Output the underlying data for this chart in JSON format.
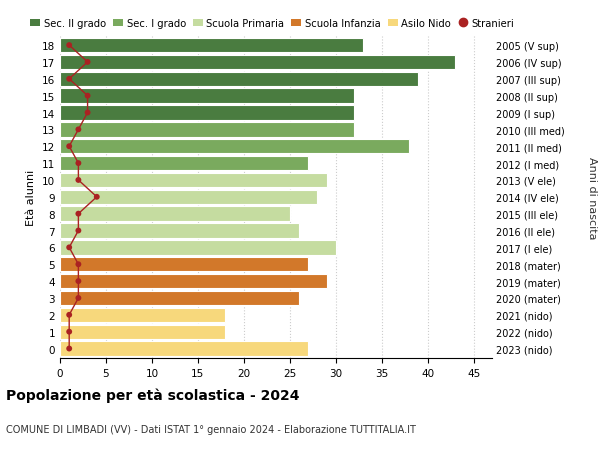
{
  "ages": [
    18,
    17,
    16,
    15,
    14,
    13,
    12,
    11,
    10,
    9,
    8,
    7,
    6,
    5,
    4,
    3,
    2,
    1,
    0
  ],
  "bar_values": [
    33,
    43,
    39,
    32,
    32,
    32,
    38,
    27,
    29,
    28,
    25,
    26,
    30,
    27,
    29,
    26,
    18,
    18,
    27
  ],
  "stranieri_values": [
    1,
    3,
    1,
    3,
    3,
    2,
    1,
    2,
    2,
    4,
    2,
    2,
    1,
    2,
    2,
    2,
    1,
    1,
    1
  ],
  "right_labels": [
    "2005 (V sup)",
    "2006 (IV sup)",
    "2007 (III sup)",
    "2008 (II sup)",
    "2009 (I sup)",
    "2010 (III med)",
    "2011 (II med)",
    "2012 (I med)",
    "2013 (V ele)",
    "2014 (IV ele)",
    "2015 (III ele)",
    "2016 (II ele)",
    "2017 (I ele)",
    "2018 (mater)",
    "2019 (mater)",
    "2020 (mater)",
    "2021 (nido)",
    "2022 (nido)",
    "2023 (nido)"
  ],
  "bar_colors_by_age": {
    "18": "#4a7c40",
    "17": "#4a7c40",
    "16": "#4a7c40",
    "15": "#4a7c40",
    "14": "#4a7c40",
    "13": "#7aaa5e",
    "12": "#7aaa5e",
    "11": "#7aaa5e",
    "10": "#c5dca0",
    "9": "#c5dca0",
    "8": "#c5dca0",
    "7": "#c5dca0",
    "6": "#c5dca0",
    "5": "#d2782a",
    "4": "#d2782a",
    "3": "#d2782a",
    "2": "#f7d87c",
    "1": "#f7d87c",
    "0": "#f7d87c"
  },
  "legend_labels": [
    "Sec. II grado",
    "Sec. I grado",
    "Scuola Primaria",
    "Scuola Infanzia",
    "Asilo Nido",
    "Stranieri"
  ],
  "legend_colors": [
    "#4a7c40",
    "#7aaa5e",
    "#c5dca0",
    "#d2782a",
    "#f7d87c",
    "#aa2222"
  ],
  "stranieri_color": "#aa2222",
  "title": "Popolazione per età scolastica - 2024",
  "subtitle": "COMUNE DI LIMBADI (VV) - Dati ISTAT 1° gennaio 2024 - Elaborazione TUTTITALIA.IT",
  "ylabel_left": "Età alunni",
  "ylabel_right": "Anni di nascita",
  "xlim": [
    0,
    47
  ],
  "xticks": [
    0,
    5,
    10,
    15,
    20,
    25,
    30,
    35,
    40,
    45
  ],
  "bg_color": "#ffffff",
  "bar_edge_color": "#ffffff"
}
